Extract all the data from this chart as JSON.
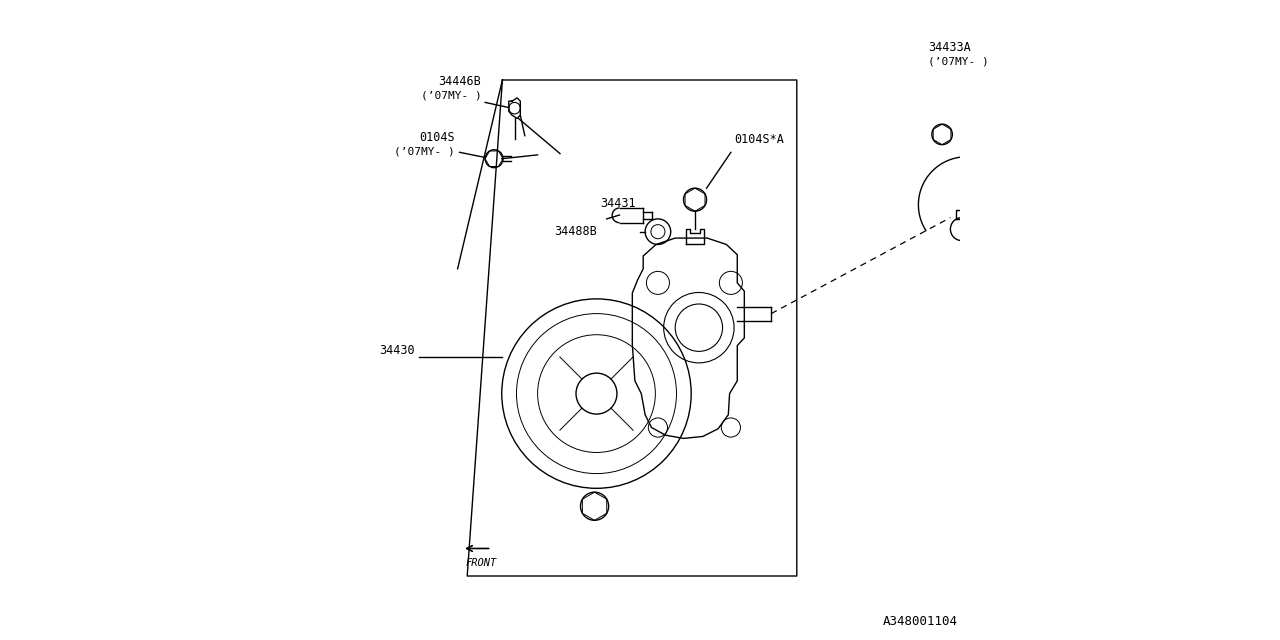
{
  "bg_color": "#ffffff",
  "line_color": "#000000",
  "fig_width": 12.8,
  "fig_height": 6.4,
  "diagram_id": "A348001104",
  "label_34446B_1": "34446B",
  "label_34446B_2": "(’07MY- )",
  "label_0104S_1": "0104S",
  "label_0104S_2": "(’07MY- )",
  "label_34431": "34431",
  "label_0104SA": "0104S*A",
  "label_34488B": "34488B",
  "label_34430": "34430",
  "label_34433A_1": "34433A",
  "label_34433A_2": "(’07MY- )",
  "label_front": "FRONT"
}
